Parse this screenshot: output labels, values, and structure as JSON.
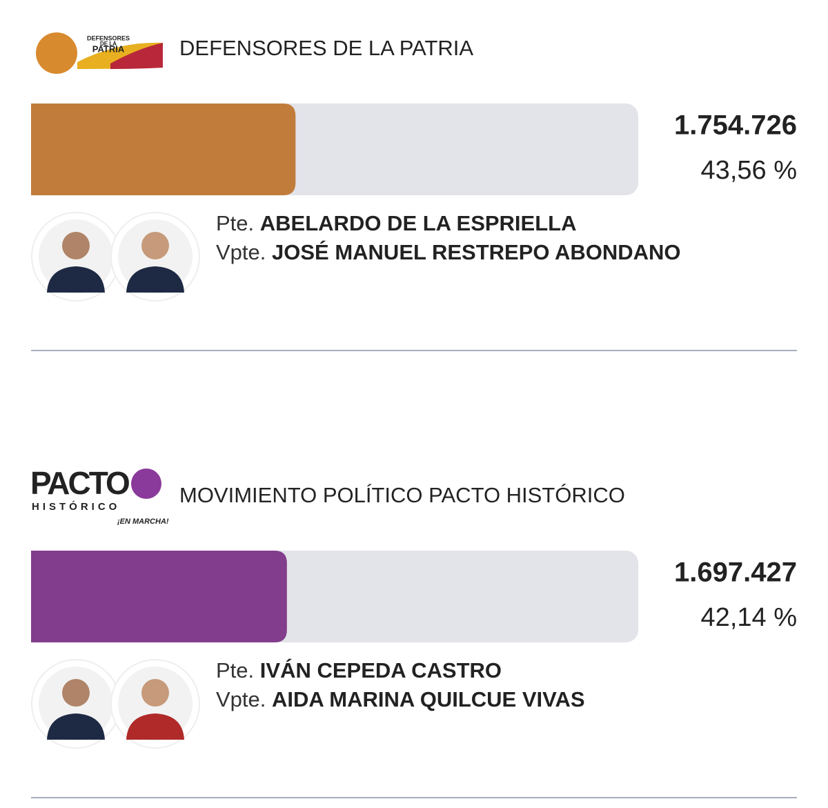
{
  "xlim": [
    0,
    100
  ],
  "results": [
    {
      "party": "DEFENSORES DE LA PATRIA",
      "logo_text": [
        "DEFENSORES",
        "DE LA",
        "PATRIA"
      ],
      "color": "#c17c3b",
      "votes": "1.754.726",
      "percent": 43.56,
      "percent_label": "43,56 %",
      "president_prefix": "Pte.",
      "president": "ABELARDO DE LA ESPRIELLA",
      "vice_prefix": "Vpte.",
      "vice": "JOSÉ MANUEL RESTREPO ABONDANO"
    },
    {
      "party": "MOVIMIENTO POLÍTICO PACTO HISTÓRICO",
      "logo_text": [
        "PACTO",
        "HISTÓRICO",
        "¡EN MARCHA!"
      ],
      "color": "#823d8c",
      "votes": "1.697.427",
      "percent": 42.14,
      "percent_label": "42,14 %",
      "president_prefix": "Pte.",
      "president": "IVÁN CEPEDA CASTRO",
      "vice_prefix": "Vpte.",
      "vice": "AIDA MARINA QUILCUE VIVAS"
    }
  ]
}
